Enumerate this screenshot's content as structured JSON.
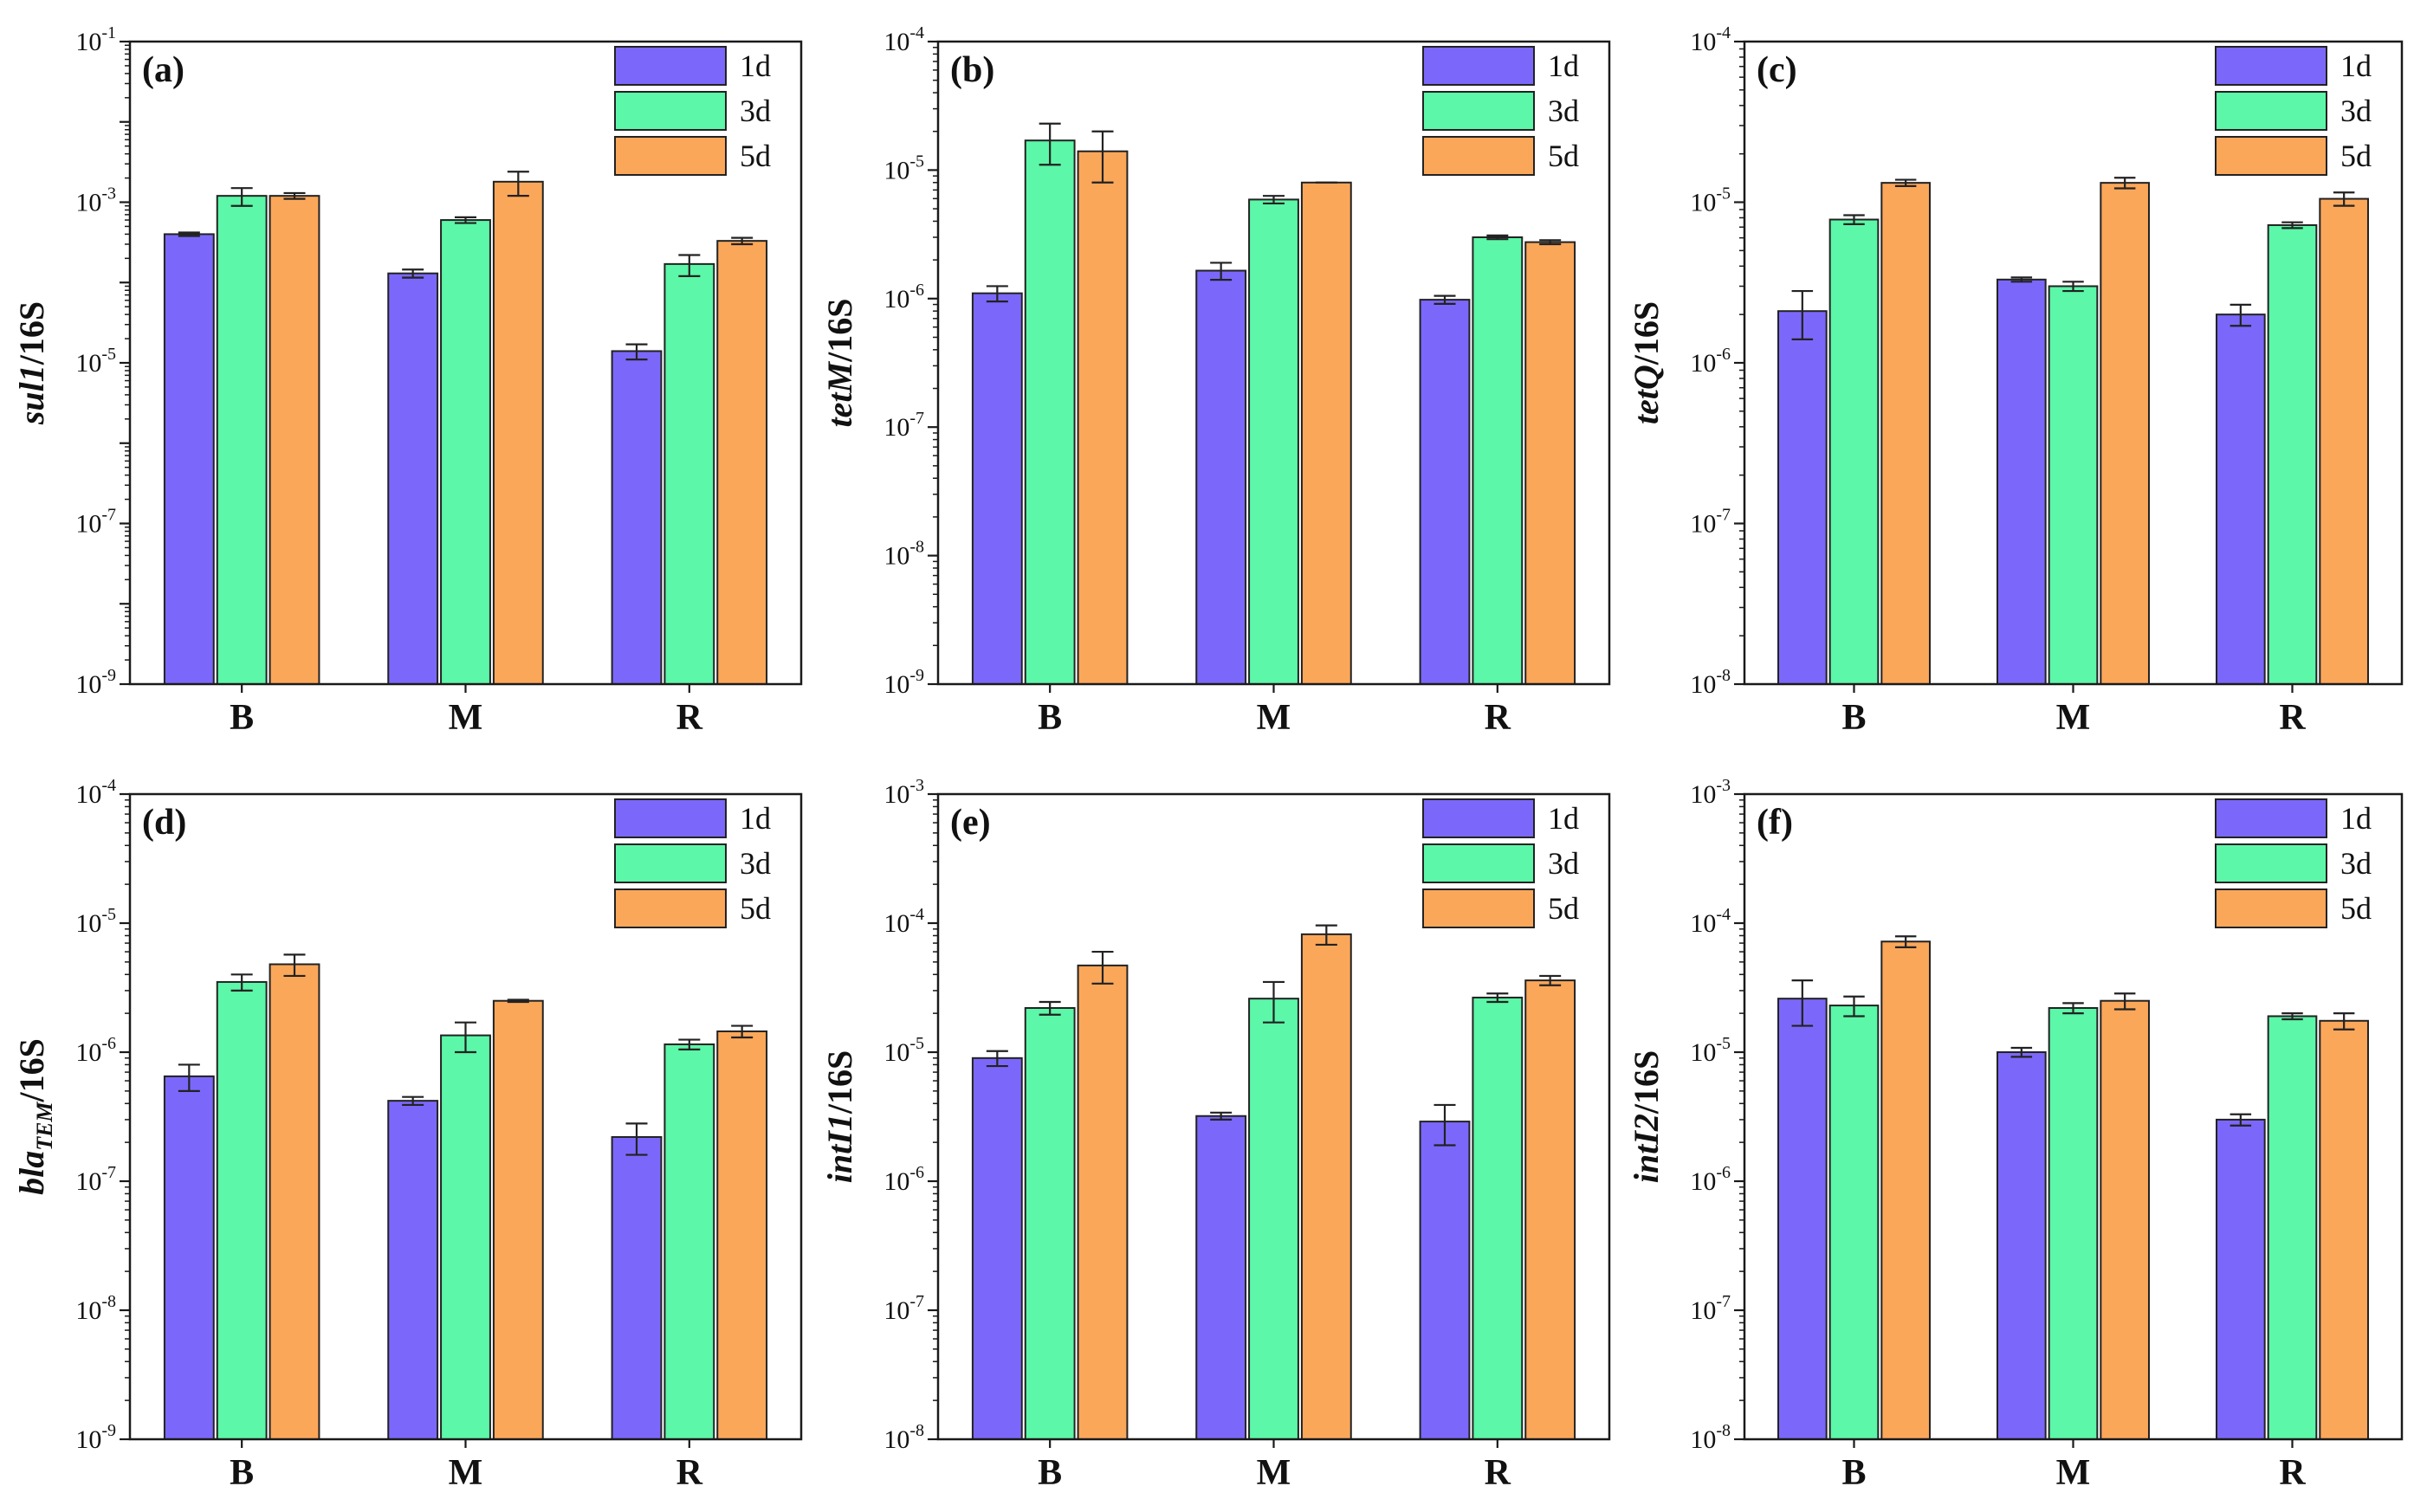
{
  "colors": {
    "1d": "#7b68fa",
    "3d": "#5cf7a8",
    "5d": "#fba75a"
  },
  "chart_data": [
    {
      "type": "bar",
      "panel_label": "(a)",
      "ylabel": {
        "italic": "sul1",
        "normal": "/16S"
      },
      "yscale": "log",
      "ylim": [
        1e-09,
        0.1
      ],
      "ytick_exponents": [
        -9,
        -7,
        -5,
        -3,
        -1
      ],
      "categories": [
        "B",
        "M",
        "R"
      ],
      "legend_position": "top-right",
      "series": [
        {
          "name": "1d",
          "values": [
            0.0004,
            0.00013,
            1.4e-05
          ],
          "errors": [
            2e-05,
            1.5e-05,
            3e-06
          ]
        },
        {
          "name": "3d",
          "values": [
            0.0012,
            0.0006,
            0.00017
          ],
          "errors": [
            0.0003,
            5e-05,
            5e-05
          ]
        },
        {
          "name": "5d",
          "values": [
            0.0012,
            0.0018,
            0.00033
          ],
          "errors": [
            0.0001,
            0.0006,
            3e-05
          ]
        }
      ]
    },
    {
      "type": "bar",
      "panel_label": "(b)",
      "ylabel": {
        "italic": "tetM",
        "normal": "/16S"
      },
      "yscale": "log",
      "ylim": [
        1e-09,
        0.0001
      ],
      "ytick_exponents": [
        -9,
        -8,
        -7,
        -6,
        -5,
        -4
      ],
      "categories": [
        "B",
        "M",
        "R"
      ],
      "legend_position": "top-right",
      "series": [
        {
          "name": "1d",
          "values": [
            1.1e-06,
            1.65e-06,
            9.8e-07
          ],
          "errors": [
            1.5e-07,
            2.5e-07,
            7e-08
          ]
        },
        {
          "name": "3d",
          "values": [
            1.7e-05,
            5.9e-06,
            3e-06
          ],
          "errors": [
            6e-06,
            4e-07,
            1e-07
          ]
        },
        {
          "name": "5d",
          "values": [
            1.4e-05,
            8e-06,
            2.75e-06
          ],
          "errors": [
            6e-06,
            0,
            1e-07
          ]
        }
      ]
    },
    {
      "type": "bar",
      "panel_label": "(c)",
      "ylabel": {
        "italic": "tetQ",
        "normal": "/16S"
      },
      "yscale": "log",
      "ylim": [
        1e-08,
        0.0001
      ],
      "ytick_exponents": [
        -8,
        -7,
        -6,
        -5,
        -4
      ],
      "categories": [
        "B",
        "M",
        "R"
      ],
      "legend_position": "top-right",
      "series": [
        {
          "name": "1d",
          "values": [
            2.1e-06,
            3.3e-06,
            2e-06
          ],
          "errors": [
            7e-07,
            1e-07,
            3e-07
          ]
        },
        {
          "name": "3d",
          "values": [
            7.8e-06,
            3e-06,
            7.2e-06
          ],
          "errors": [
            5e-07,
            2e-07,
            3e-07
          ]
        },
        {
          "name": "5d",
          "values": [
            1.32e-05,
            1.32e-05,
            1.05e-05
          ],
          "errors": [
            6e-07,
            1e-06,
            1e-06
          ]
        }
      ]
    },
    {
      "type": "bar",
      "panel_label": "(d)",
      "ylabel": {
        "italic": "bla",
        "sub": "TEM",
        "normal": "/16S"
      },
      "yscale": "log",
      "ylim": [
        1e-09,
        0.0001
      ],
      "ytick_exponents": [
        -9,
        -8,
        -7,
        -6,
        -5,
        -4
      ],
      "categories": [
        "B",
        "M",
        "R"
      ],
      "legend_position": "top-right",
      "series": [
        {
          "name": "1d",
          "values": [
            6.5e-07,
            4.2e-07,
            2.2e-07
          ],
          "errors": [
            1.5e-07,
            3e-08,
            6e-08
          ]
        },
        {
          "name": "3d",
          "values": [
            3.5e-06,
            1.35e-06,
            1.15e-06
          ],
          "errors": [
            5e-07,
            3.5e-07,
            1e-07
          ]
        },
        {
          "name": "5d",
          "values": [
            4.8e-06,
            2.5e-06,
            1.45e-06
          ],
          "errors": [
            9e-07,
            5e-08,
            1.5e-07
          ]
        }
      ]
    },
    {
      "type": "bar",
      "panel_label": "(e)",
      "ylabel": {
        "italic": "intI1",
        "normal": "/16S"
      },
      "yscale": "log",
      "ylim": [
        1e-08,
        0.001
      ],
      "ytick_exponents": [
        -8,
        -7,
        -6,
        -5,
        -4,
        -3
      ],
      "categories": [
        "B",
        "M",
        "R"
      ],
      "legend_position": "top-right",
      "series": [
        {
          "name": "1d",
          "values": [
            9e-06,
            3.2e-06,
            2.9e-06
          ],
          "errors": [
            1.2e-06,
            2e-07,
            1e-06
          ]
        },
        {
          "name": "3d",
          "values": [
            2.2e-05,
            2.6e-05,
            2.65e-05
          ],
          "errors": [
            2.5e-06,
            9e-06,
            2e-06
          ]
        },
        {
          "name": "5d",
          "values": [
            4.7e-05,
            8.2e-05,
            3.6e-05
          ],
          "errors": [
            1.3e-05,
            1.4e-05,
            3e-06
          ]
        }
      ]
    },
    {
      "type": "bar",
      "panel_label": "(f)",
      "ylabel": {
        "italic": "intI2",
        "normal": "/16S"
      },
      "yscale": "log",
      "ylim": [
        1e-08,
        0.001
      ],
      "ytick_exponents": [
        -8,
        -7,
        -6,
        -5,
        -4,
        -3
      ],
      "categories": [
        "B",
        "M",
        "R"
      ],
      "legend_position": "top-right",
      "series": [
        {
          "name": "1d",
          "values": [
            2.6e-05,
            1e-05,
            3e-06
          ],
          "errors": [
            1e-05,
            8e-07,
            3e-07
          ]
        },
        {
          "name": "3d",
          "values": [
            2.3e-05,
            2.2e-05,
            1.9e-05
          ],
          "errors": [
            4e-06,
            2e-06,
            1e-06
          ]
        },
        {
          "name": "5d",
          "values": [
            7.2e-05,
            2.5e-05,
            1.75e-05
          ],
          "errors": [
            7e-06,
            3.5e-06,
            2.5e-06
          ]
        }
      ]
    }
  ]
}
